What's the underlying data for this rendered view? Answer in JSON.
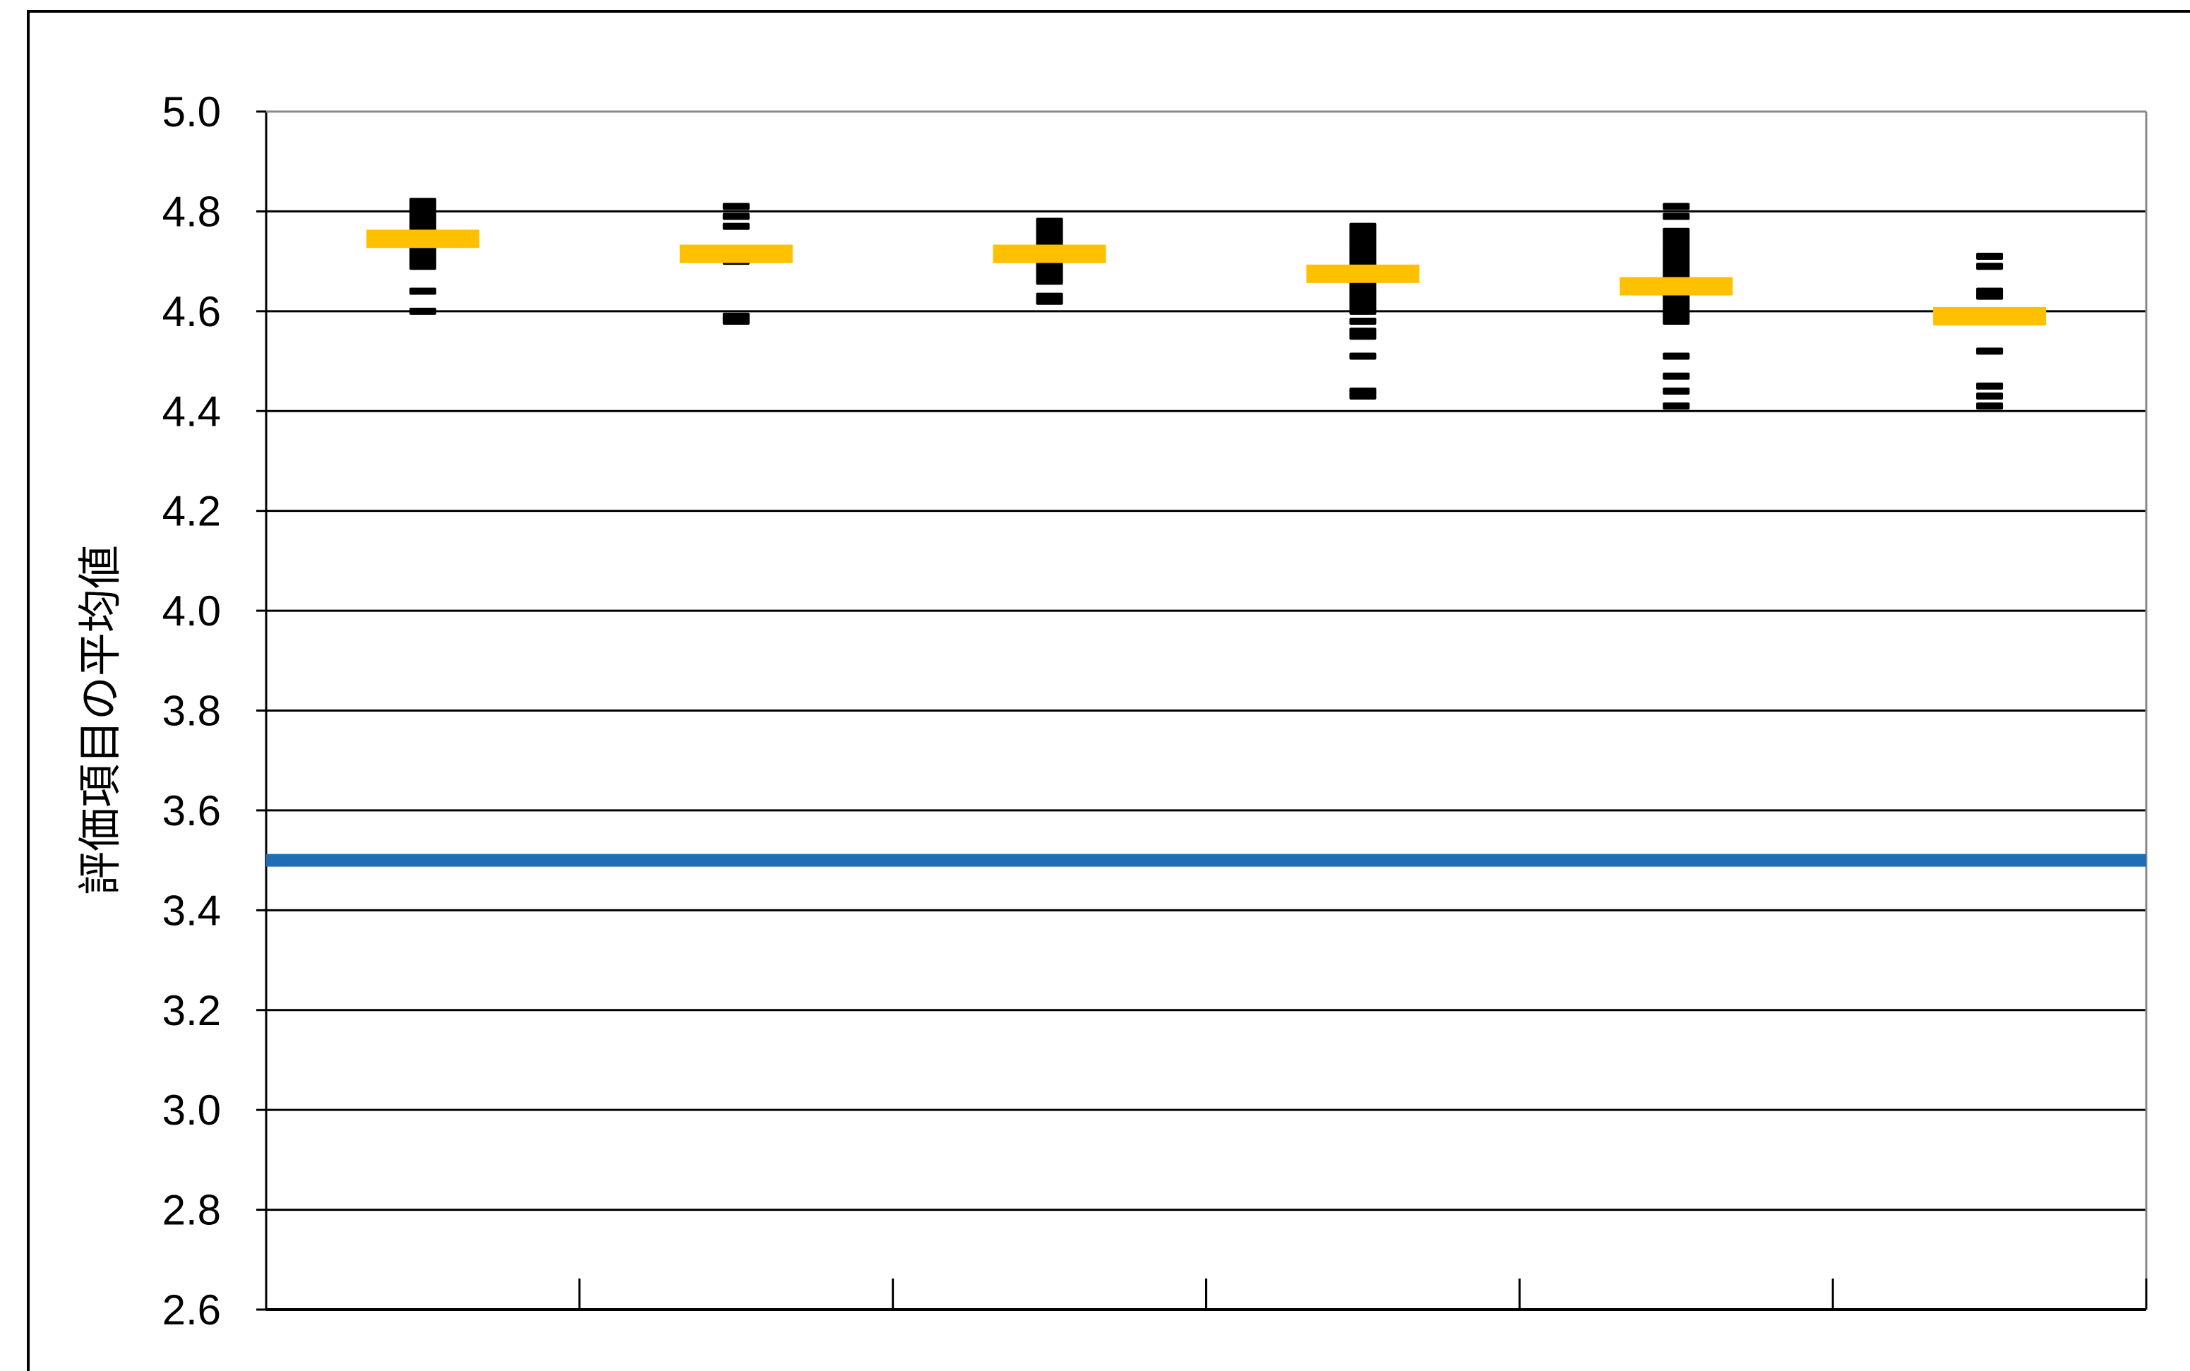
{
  "chart_data": {
    "type": "scatter",
    "title": "",
    "xlabel": "",
    "ylabel": "評価項目の平均値",
    "ylim": [
      2.6,
      5.0
    ],
    "yticks": [
      "2.6",
      "2.8",
      "3.0",
      "3.2",
      "3.4",
      "3.6",
      "3.8",
      "4.0",
      "4.2",
      "4.4",
      "4.6",
      "4.8",
      "5.0"
    ],
    "grid": true,
    "categories_count": 6,
    "reference_line": {
      "value": 3.5,
      "color": "#1F6EB5"
    },
    "mean_color": "#FFC000",
    "point_color": "#000000",
    "means": [
      4.745,
      4.715,
      4.715,
      4.675,
      4.65,
      4.59
    ],
    "points": [
      [
        4.82,
        4.81,
        4.8,
        4.79,
        4.78,
        4.77,
        4.76,
        4.75,
        4.74,
        4.73,
        4.72,
        4.71,
        4.7,
        4.69,
        4.64,
        4.6
      ],
      [
        4.81,
        4.79,
        4.77,
        4.72,
        4.7,
        4.59,
        4.58
      ],
      [
        4.78,
        4.77,
        4.76,
        4.75,
        4.74,
        4.73,
        4.72,
        4.71,
        4.7,
        4.69,
        4.68,
        4.67,
        4.66,
        4.63,
        4.62
      ],
      [
        4.77,
        4.76,
        4.75,
        4.74,
        4.73,
        4.72,
        4.71,
        4.7,
        4.69,
        4.68,
        4.67,
        4.66,
        4.65,
        4.64,
        4.63,
        4.62,
        4.61,
        4.6,
        4.58,
        4.56,
        4.55,
        4.51,
        4.44,
        4.43
      ],
      [
        4.81,
        4.79,
        4.76,
        4.75,
        4.74,
        4.73,
        4.72,
        4.71,
        4.7,
        4.69,
        4.68,
        4.67,
        4.66,
        4.65,
        4.64,
        4.63,
        4.62,
        4.61,
        4.6,
        4.59,
        4.58,
        4.51,
        4.47,
        4.44,
        4.41
      ],
      [
        4.71,
        4.69,
        4.64,
        4.63,
        4.6,
        4.52,
        4.45,
        4.43,
        4.41
      ]
    ]
  }
}
